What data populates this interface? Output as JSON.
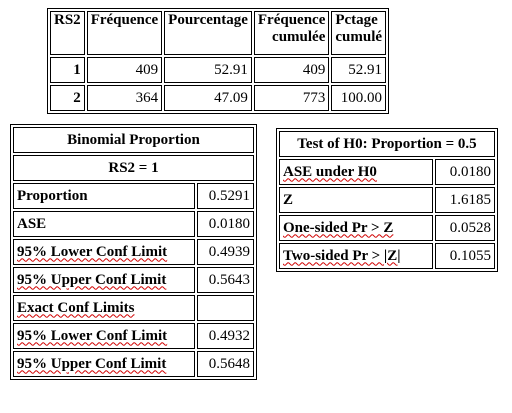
{
  "freq_table": {
    "headers": {
      "var": "RS2",
      "freq": "Fréquence",
      "pct": "Pourcentage",
      "cumfreq": [
        "Fréquence",
        "cumulée"
      ],
      "cumpct": [
        "Pctage",
        "cumulé"
      ]
    },
    "rows": [
      {
        "level": "1",
        "freq": "409",
        "pct": "52.91",
        "cumfreq": "409",
        "cumpct": "52.91"
      },
      {
        "level": "2",
        "freq": "364",
        "pct": "47.09",
        "cumfreq": "773",
        "cumpct": "100.00"
      }
    ]
  },
  "binomial": {
    "title": "Binomial Proportion",
    "subtitle": "RS2 = 1",
    "rows": [
      {
        "label": "Proportion",
        "value": "0.5291"
      },
      {
        "label": "ASE",
        "value": "0.0180"
      },
      {
        "label": "95% Lower Conf Limit",
        "value": "0.4939"
      },
      {
        "label": "95% Upper Conf Limit",
        "value": "0.5643"
      }
    ],
    "exact_header": "Exact Conf Limits",
    "exact_rows": [
      {
        "label": "95% Lower Conf Limit",
        "value": "0.4932"
      },
      {
        "label": "95% Upper Conf Limit",
        "value": "0.5648"
      }
    ]
  },
  "test": {
    "title": "Test of H0: Proportion = 0.5",
    "rows": [
      {
        "label": "ASE under H0",
        "value": "0.0180"
      },
      {
        "label": "Z",
        "value": "1.6185"
      },
      {
        "label": "One-sided Pr > Z",
        "value": "0.0528"
      },
      {
        "label": "Two-sided Pr > |Z|",
        "value": "0.1055"
      }
    ]
  }
}
